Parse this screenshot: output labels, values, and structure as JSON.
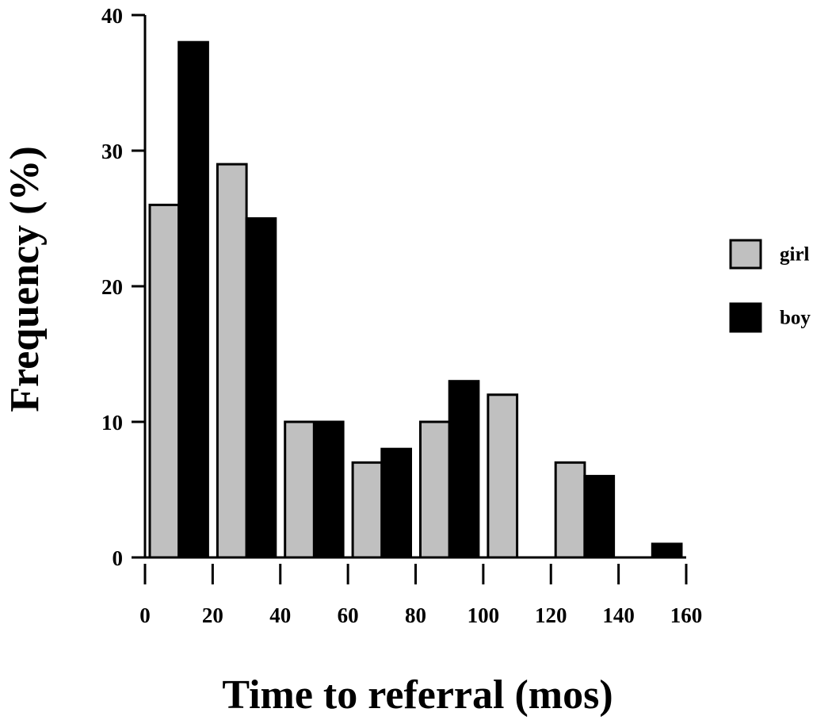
{
  "chart_data": {
    "type": "bar",
    "xlabel": "Time to referral (mos)",
    "ylabel": "Frequency (%)",
    "ylim": [
      0,
      40
    ],
    "xlim": [
      0,
      160
    ],
    "x_ticks": [
      "0",
      "20",
      "40",
      "60",
      "80",
      "100",
      "120",
      "140",
      "160"
    ],
    "y_ticks": [
      "0",
      "10",
      "20",
      "30",
      "40"
    ],
    "bin_starts": [
      0,
      20,
      40,
      60,
      80,
      100,
      120,
      140
    ],
    "bin_width": 20,
    "series": [
      {
        "name": "girl",
        "color": "#c0c0c0",
        "values": [
          26,
          29,
          10,
          7,
          10,
          12,
          7,
          0
        ]
      },
      {
        "name": "boy",
        "color": "#000000",
        "values": [
          38,
          25,
          10,
          8,
          13,
          0,
          6,
          1
        ]
      }
    ],
    "legend_position": "right",
    "grid": false
  }
}
